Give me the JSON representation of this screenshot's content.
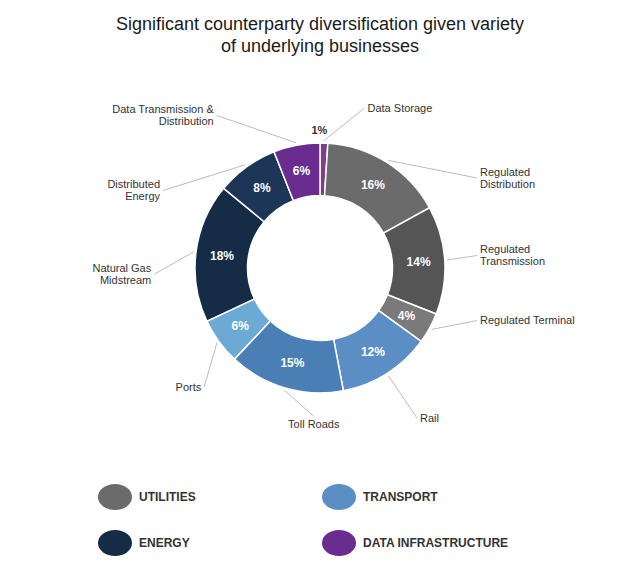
{
  "chart_data": {
    "type": "donut",
    "title": "Significant counterparty diversification given variety\nof underlying businesses",
    "categories": [
      "Data Storage",
      "Regulated\nDistribution",
      "Regulated\nTransmission",
      "Regulated Terminal",
      "Rail",
      "Toll Roads",
      "Ports",
      "Natural Gas\nMidstream",
      "Distributed\nEnergy",
      "Data Transmission &\nDistribution"
    ],
    "values": [
      1,
      16,
      14,
      4,
      12,
      15,
      6,
      18,
      8,
      6
    ],
    "value_labels": [
      "1%",
      "16%",
      "14%",
      "4%",
      "12%",
      "15%",
      "6%",
      "18%",
      "8%",
      "6%"
    ],
    "colors": [
      "#7b3f8c",
      "#6b6b6b",
      "#555555",
      "#7a7a7a",
      "#5b8ec4",
      "#4a7fb5",
      "#6aaad4",
      "#162b45",
      "#1d3557",
      "#6a2d8f"
    ],
    "data_labels": true,
    "legend_entries": [
      {
        "name": "UTILITIES",
        "color": "#6b6b6b"
      },
      {
        "name": "TRANSPORT",
        "color": "#5b8ec4"
      },
      {
        "name": "ENERGY",
        "color": "#162b45"
      },
      {
        "name": "DATA INFRASTRUCTURE",
        "color": "#6a2d8f"
      }
    ]
  }
}
